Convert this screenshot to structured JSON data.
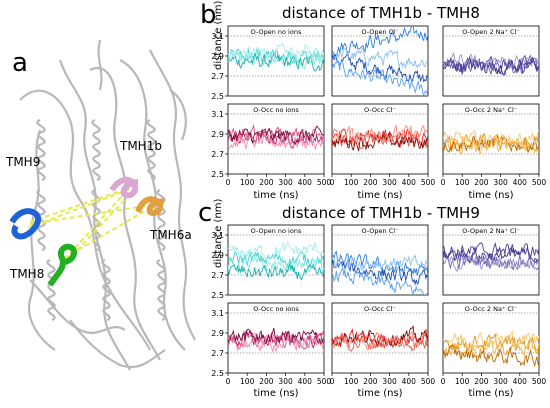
{
  "panel_labels": {
    "a": "a",
    "b": "b",
    "c": "c"
  },
  "structure": {
    "labels": [
      "TMH1b",
      "TMH9",
      "TMH6a",
      "TMH8"
    ],
    "colors": {
      "TMH9": "#1e63d6",
      "TMH8": "#22b022",
      "TMH1b": "#d9a7d2",
      "TMH6a": "#e0a040",
      "distance_lines": "#e8e84a"
    }
  },
  "chart_data": [
    {
      "type": "line",
      "title": "distance of TMH1b - TMH8",
      "xlabel": "time (ns)",
      "ylabel": "distance (nm)",
      "xlim": [
        0,
        500
      ],
      "ylim": [
        2.5,
        3.2
      ],
      "x_ticks": [
        "0",
        "100",
        "200",
        "300",
        "400",
        "500"
      ],
      "y_ticks": [
        "2.5",
        "2.7",
        "2.9",
        "3.1"
      ],
      "panels": [
        {
          "label": "O-Open no ions",
          "colors": [
            "#3fd3cf",
            "#7fe6e2",
            "#18b0ac",
            "#a8ecea"
          ],
          "means": [
            2.9,
            2.88,
            2.86,
            2.92
          ],
          "trend": [
            0.0,
            -0.02,
            -0.04,
            0.02
          ]
        },
        {
          "label": "O-Open Cl⁻",
          "colors": [
            "#2f7fe0",
            "#1a4fb5",
            "#5aa0f0",
            "#8ac0f5"
          ],
          "means": [
            2.98,
            2.88,
            2.8,
            2.92
          ],
          "trend": [
            0.16,
            -0.22,
            -0.26,
            -0.08
          ]
        },
        {
          "label": "O-Open 2 Na⁺ Cl⁻",
          "colors": [
            "#3a2e80",
            "#6a5fb0",
            "#9a92cc",
            "#4b3f99"
          ],
          "means": [
            2.82,
            2.8,
            2.84,
            2.81
          ],
          "trend": [
            0.0,
            0.0,
            0.0,
            0.0
          ]
        },
        {
          "label": "O-Occ no ions",
          "colors": [
            "#b01c5e",
            "#e04f8a",
            "#f08ab0",
            "#7a1040"
          ],
          "means": [
            2.86,
            2.9,
            2.82,
            2.88
          ],
          "trend": [
            0.0,
            0.0,
            0.0,
            0.0
          ]
        },
        {
          "label": "O-Occ Cl⁻",
          "colors": [
            "#e02020",
            "#f05a4a",
            "#8a0c0c",
            "#f58a7a"
          ],
          "means": [
            2.88,
            2.84,
            2.82,
            2.9
          ],
          "trend": [
            0.0,
            0.0,
            0.0,
            0.0
          ]
        },
        {
          "label": "O-Occ 2 Na⁺ Cl⁻",
          "colors": [
            "#e8900a",
            "#f0b040",
            "#c06a00",
            "#f5c870"
          ],
          "means": [
            2.82,
            2.78,
            2.8,
            2.84
          ],
          "trend": [
            0.0,
            0.0,
            0.0,
            0.0
          ]
        }
      ]
    },
    {
      "type": "line",
      "title": "distance of TMH1b - TMH9",
      "xlabel": "time (ns)",
      "ylabel": "distance (nm)",
      "xlim": [
        0,
        500
      ],
      "ylim": [
        2.5,
        3.2
      ],
      "x_ticks": [
        "0",
        "100",
        "200",
        "300",
        "400",
        "500"
      ],
      "y_ticks": [
        "2.5",
        "2.7",
        "2.9",
        "3.1"
      ],
      "panels": [
        {
          "label": "O-Open no ions",
          "colors": [
            "#3fd3cf",
            "#7fe6e2",
            "#18b0ac",
            "#a8ecea"
          ],
          "means": [
            2.86,
            2.8,
            2.74,
            2.92
          ],
          "trend": [
            0.0,
            0.0,
            -0.04,
            0.04
          ]
        },
        {
          "label": "O-Open Cl⁻",
          "colors": [
            "#2f7fe0",
            "#1a4fb5",
            "#5aa0f0",
            "#8ac0f5"
          ],
          "means": [
            2.86,
            2.8,
            2.72,
            2.84
          ],
          "trend": [
            -0.14,
            -0.16,
            -0.2,
            -0.04
          ]
        },
        {
          "label": "O-Open 2 Na⁺ Cl⁻",
          "colors": [
            "#3a2e80",
            "#6a5fb0",
            "#9a92cc",
            "#4b3f99"
          ],
          "means": [
            2.9,
            2.84,
            2.82,
            2.94
          ],
          "trend": [
            0.0,
            0.0,
            0.0,
            0.0
          ]
        },
        {
          "label": "O-Occ no ions",
          "colors": [
            "#b01c5e",
            "#e04f8a",
            "#f08ab0",
            "#7a1040"
          ],
          "means": [
            2.84,
            2.82,
            2.8,
            2.86
          ],
          "trend": [
            0.0,
            0.0,
            0.0,
            0.0
          ]
        },
        {
          "label": "O-Occ Cl⁻",
          "colors": [
            "#e02020",
            "#f05a4a",
            "#8a0c0c",
            "#f58a7a"
          ],
          "means": [
            2.84,
            2.8,
            2.86,
            2.82
          ],
          "trend": [
            0.0,
            0.0,
            0.0,
            0.0
          ]
        },
        {
          "label": "O-Occ 2 Na⁺ Cl⁻",
          "colors": [
            "#e8900a",
            "#f0b040",
            "#c06a00",
            "#f5c870"
          ],
          "means": [
            2.8,
            2.74,
            2.7,
            2.84
          ],
          "trend": [
            0.0,
            0.0,
            -0.06,
            0.0
          ]
        }
      ]
    }
  ]
}
